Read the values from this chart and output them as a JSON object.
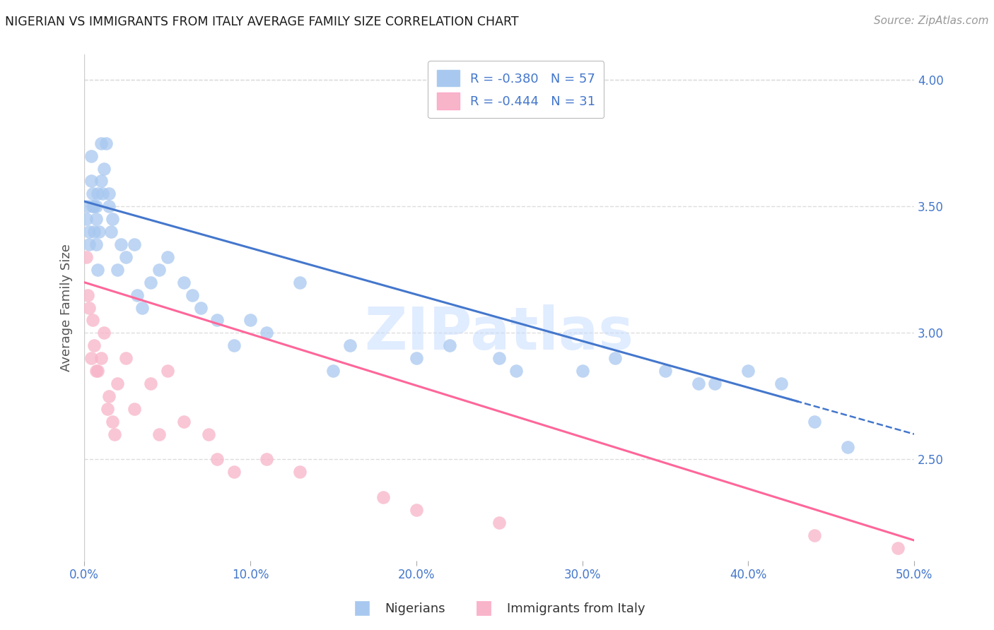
{
  "title": "NIGERIAN VS IMMIGRANTS FROM ITALY AVERAGE FAMILY SIZE CORRELATION CHART",
  "source": "Source: ZipAtlas.com",
  "ylabel": "Average Family Size",
  "xlim": [
    0.0,
    0.5
  ],
  "ylim": [
    2.1,
    4.1
  ],
  "yticks": [
    2.5,
    3.0,
    3.5,
    4.0
  ],
  "xtick_vals": [
    0.0,
    0.1,
    0.2,
    0.3,
    0.4,
    0.5
  ],
  "xtick_labels": [
    "0.0%",
    "10.0%",
    "20.0%",
    "30.0%",
    "40.0%",
    "50.0%"
  ],
  "legend_labels": [
    "Nigerians",
    "Immigrants from Italy"
  ],
  "R_blue": -0.38,
  "N_blue": 57,
  "R_pink": -0.444,
  "N_pink": 31,
  "color_blue": "#A8C8F0",
  "color_pink": "#F8B4C8",
  "line_color_blue": "#4477CC",
  "line_color_pink": "#FF6699",
  "tick_color": "#4477CC",
  "watermark_text": "ZIPatlas",
  "background_color": "#FFFFFF",
  "grid_color": "#DDDDDD",
  "blue_x": [
    0.001,
    0.002,
    0.003,
    0.003,
    0.004,
    0.004,
    0.005,
    0.005,
    0.006,
    0.006,
    0.007,
    0.007,
    0.007,
    0.008,
    0.008,
    0.009,
    0.01,
    0.01,
    0.011,
    0.012,
    0.013,
    0.015,
    0.015,
    0.016,
    0.017,
    0.02,
    0.022,
    0.025,
    0.03,
    0.032,
    0.035,
    0.04,
    0.045,
    0.05,
    0.06,
    0.065,
    0.07,
    0.08,
    0.09,
    0.1,
    0.11,
    0.13,
    0.15,
    0.16,
    0.2,
    0.22,
    0.25,
    0.26,
    0.3,
    0.32,
    0.35,
    0.37,
    0.38,
    0.4,
    0.42,
    0.44,
    0.46
  ],
  "blue_y": [
    3.45,
    3.5,
    3.35,
    3.4,
    3.6,
    3.7,
    3.5,
    3.55,
    3.4,
    3.5,
    3.35,
    3.45,
    3.5,
    3.25,
    3.55,
    3.4,
    3.6,
    3.75,
    3.55,
    3.65,
    3.75,
    3.55,
    3.5,
    3.4,
    3.45,
    3.25,
    3.35,
    3.3,
    3.35,
    3.15,
    3.1,
    3.2,
    3.25,
    3.3,
    3.2,
    3.15,
    3.1,
    3.05,
    2.95,
    3.05,
    3.0,
    3.2,
    2.85,
    2.95,
    2.9,
    2.95,
    2.9,
    2.85,
    2.85,
    2.9,
    2.85,
    2.8,
    2.8,
    2.85,
    2.8,
    2.65,
    2.55
  ],
  "pink_x": [
    0.001,
    0.002,
    0.003,
    0.004,
    0.005,
    0.006,
    0.007,
    0.008,
    0.01,
    0.012,
    0.014,
    0.015,
    0.017,
    0.018,
    0.02,
    0.025,
    0.03,
    0.04,
    0.045,
    0.05,
    0.06,
    0.075,
    0.08,
    0.09,
    0.11,
    0.13,
    0.18,
    0.2,
    0.25,
    0.44,
    0.49
  ],
  "pink_y": [
    3.3,
    3.15,
    3.1,
    2.9,
    3.05,
    2.95,
    2.85,
    2.85,
    2.9,
    3.0,
    2.7,
    2.75,
    2.65,
    2.6,
    2.8,
    2.9,
    2.7,
    2.8,
    2.6,
    2.85,
    2.65,
    2.6,
    2.5,
    2.45,
    2.5,
    2.45,
    2.35,
    2.3,
    2.25,
    2.2,
    2.15
  ]
}
